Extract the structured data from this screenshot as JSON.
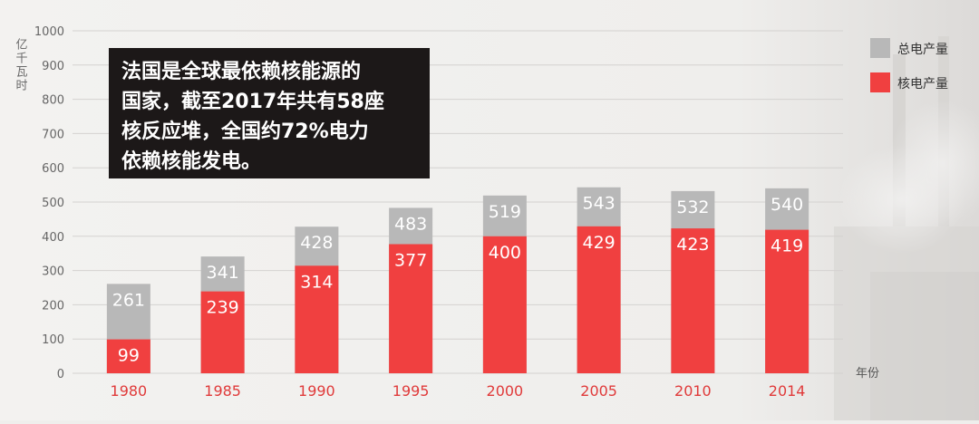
{
  "chart_data": {
    "type": "bar",
    "stacked": "overlaid",
    "yunit": "亿千瓦时",
    "xunit": "年份",
    "categories": [
      "1980",
      "1985",
      "1990",
      "1995",
      "2000",
      "2005",
      "2010",
      "2014"
    ],
    "series": [
      {
        "name": "总电产量",
        "values": [
          261,
          341,
          428,
          483,
          519,
          543,
          532,
          540
        ],
        "color": "#b8b8b8"
      },
      {
        "name": "核电产量",
        "values": [
          99,
          239,
          314,
          377,
          400,
          429,
          423,
          419
        ],
        "color": "#f04040"
      }
    ],
    "ylim": [
      0,
      1000
    ],
    "yticks": [
      0,
      100,
      200,
      300,
      400,
      500,
      600,
      700,
      800,
      900,
      1000
    ],
    "grid": true,
    "legend_position": "top-right",
    "annotation": {
      "lines": [
        "法国是全球最依赖核能源的",
        "国家，截至2017年共有58座",
        "核反应堆，全国约72%电力",
        "依赖核能发电。"
      ]
    },
    "category_label_color": "#e03a3a"
  }
}
